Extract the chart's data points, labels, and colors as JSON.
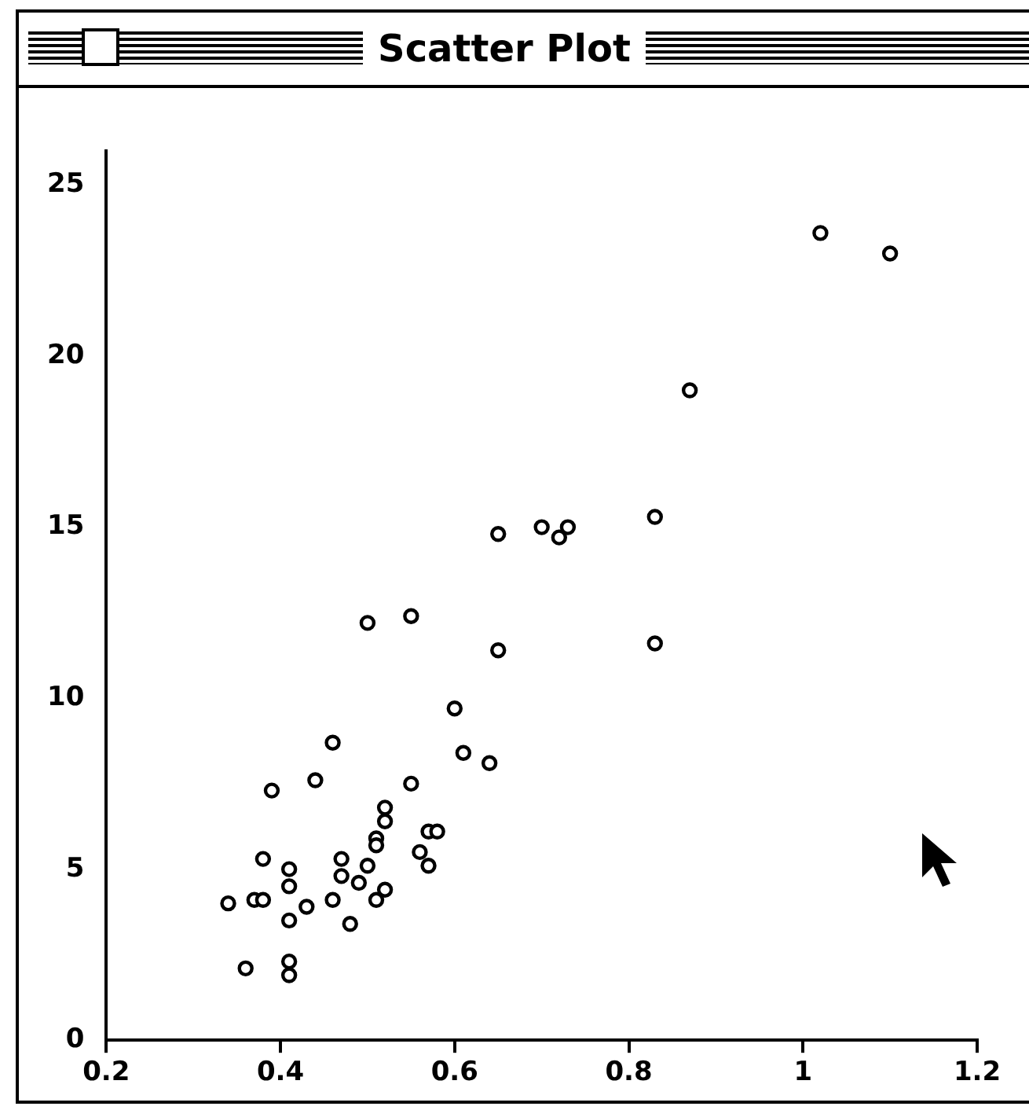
{
  "chart_data": {
    "type": "scatter",
    "title": "Scatter Plot",
    "marker": "circle",
    "grid": false,
    "legend": false,
    "xlim": [
      0.2,
      1.2
    ],
    "xticks": [
      0.2,
      0.4,
      0.6,
      0.8,
      1,
      1.2
    ],
    "ylim": [
      0,
      26
    ],
    "yticks": [
      0,
      5,
      10,
      15,
      20,
      25
    ],
    "series": [
      {
        "color": "#000000",
        "x": [
          1.02,
          1.1,
          0.87,
          0.83,
          0.83,
          0.7,
          0.73,
          0.72,
          0.65,
          0.65,
          0.5,
          0.55,
          0.6,
          0.46,
          0.61,
          0.64,
          0.44,
          0.39,
          0.55,
          0.52,
          0.52,
          0.57,
          0.58,
          0.51,
          0.51,
          0.56,
          0.57,
          0.38,
          0.41,
          0.41,
          0.47,
          0.47,
          0.5,
          0.49,
          0.52,
          0.51,
          0.34,
          0.37,
          0.38,
          0.43,
          0.46,
          0.41,
          0.48,
          0.36,
          0.41,
          0.41
        ],
        "values": [
          23.6,
          23.0,
          19.0,
          15.3,
          11.6,
          15.0,
          15.0,
          14.7,
          14.8,
          11.4,
          12.2,
          12.4,
          9.7,
          8.7,
          8.4,
          8.1,
          7.6,
          7.3,
          7.5,
          6.8,
          6.4,
          6.1,
          6.1,
          5.9,
          5.7,
          5.5,
          5.1,
          5.3,
          5.0,
          4.5,
          5.3,
          4.8,
          5.1,
          4.6,
          4.4,
          4.1,
          4.0,
          4.1,
          4.1,
          3.9,
          4.1,
          3.5,
          3.4,
          2.1,
          2.3,
          1.9
        ]
      }
    ]
  }
}
